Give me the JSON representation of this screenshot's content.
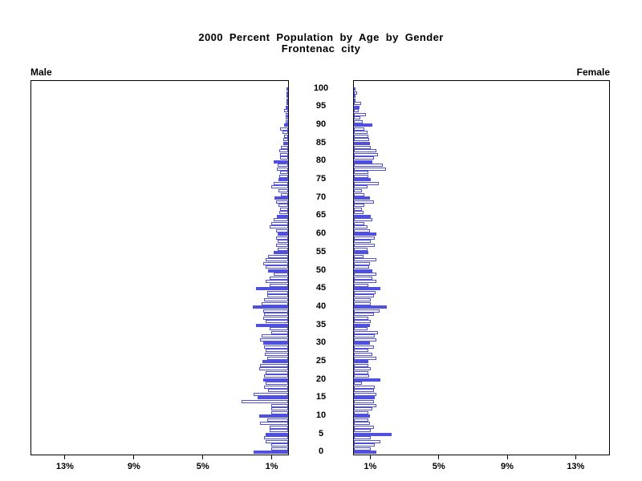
{
  "title": {
    "line1": "2000 Percent Population by Age by Gender",
    "line2": "Frontenac city"
  },
  "panel_labels": {
    "left": "Male",
    "right": "Female"
  },
  "colors": {
    "bar_accent": "#4f4fe0",
    "bar_fill": "#ffffff",
    "axis": "#000000",
    "text": "#000000"
  },
  "axis": {
    "x_max_percent": 15,
    "x_ticks": [
      {
        "pct": 1,
        "label": "1%"
      },
      {
        "pct": 5,
        "label": "5%"
      },
      {
        "pct": 9,
        "label": "9%"
      },
      {
        "pct": 13,
        "label": "13%"
      }
    ],
    "x_tick_labels_left_to_right_male": [
      "13%",
      "9%",
      "5%",
      "1%"
    ],
    "x_tick_labels_left_to_right_female": [
      "1%",
      "5%",
      "9%",
      "13%"
    ],
    "age_min": 0,
    "age_max": 100,
    "age_tick_step": 5,
    "age_tick_labels": [
      "100",
      "95",
      "90",
      "85",
      "80",
      "75",
      "70",
      "65",
      "60",
      "55",
      "50",
      "45",
      "40",
      "35",
      "30",
      "25",
      "20",
      "15",
      "10",
      "5",
      "0"
    ]
  },
  "chart_data": {
    "type": "bar",
    "subtype": "population-pyramid",
    "title": "2000 Percent Population by Age by Gender",
    "subtitle": "Frontenac city",
    "orientation": "horizontal",
    "x_unit": "percent of population",
    "xlim": [
      0,
      15
    ],
    "ages_from": 0,
    "ages_to": 100,
    "highlight_rule": "bars at ages divisible by 5 are solid blue; all other ages are white with blue outline",
    "legend_position": "none",
    "grid": false,
    "series": [
      {
        "name": "Male",
        "side": "left",
        "values": [
          2.0,
          1.0,
          1.0,
          1.3,
          1.4,
          1.32,
          1.1,
          1.1,
          1.63,
          1.24,
          1.7,
          1.0,
          1.0,
          1.0,
          2.7,
          1.77,
          2.0,
          1.16,
          1.4,
          1.3,
          1.47,
          1.4,
          1.3,
          1.7,
          1.63,
          1.5,
          1.2,
          1.35,
          1.3,
          1.4,
          1.47,
          1.63,
          1.55,
          1.0,
          1.08,
          1.86,
          1.3,
          1.45,
          1.4,
          1.47,
          2.05,
          1.55,
          1.4,
          1.2,
          1.24,
          1.86,
          1.1,
          1.32,
          1.08,
          0.85,
          1.16,
          1.3,
          1.47,
          1.32,
          1.16,
          0.85,
          0.62,
          0.7,
          0.62,
          0.7,
          0.59,
          0.7,
          1.08,
          1.0,
          0.85,
          0.65,
          0.5,
          0.47,
          0.54,
          0.7,
          0.78,
          0.4,
          0.54,
          1.0,
          0.85,
          0.54,
          0.5,
          0.47,
          0.65,
          0.59,
          0.85,
          0.47,
          0.47,
          0.53,
          0.43,
          0.28,
          0.28,
          0.22,
          0.34,
          0.47,
          0.22,
          0.16,
          0.15,
          0.12,
          0.22,
          0.14,
          0.09,
          0.07,
          0.07,
          0.05,
          0.05
        ]
      },
      {
        "name": "Female",
        "side": "right",
        "values": [
          1.32,
          1.0,
          1.24,
          1.55,
          1.0,
          2.2,
          1.0,
          1.16,
          0.93,
          0.85,
          0.93,
          0.85,
          1.1,
          1.32,
          1.16,
          1.24,
          1.32,
          1.16,
          1.24,
          0.47,
          1.55,
          0.9,
          0.85,
          1.0,
          0.85,
          0.85,
          1.32,
          1.1,
          0.85,
          1.2,
          0.93,
          1.3,
          1.24,
          1.4,
          0.8,
          0.95,
          1.0,
          0.85,
          1.16,
          1.5,
          1.94,
          1.0,
          1.0,
          1.2,
          1.25,
          1.55,
          0.85,
          1.32,
          1.08,
          1.32,
          1.08,
          0.9,
          0.93,
          1.32,
          0.55,
          0.85,
          0.8,
          1.24,
          1.0,
          1.24,
          1.32,
          0.93,
          0.78,
          0.62,
          1.08,
          1.0,
          0.55,
          0.47,
          0.62,
          1.16,
          0.96,
          0.6,
          0.47,
          0.78,
          1.47,
          1.0,
          0.85,
          0.85,
          1.9,
          1.7,
          1.08,
          1.2,
          1.4,
          1.3,
          1.0,
          0.93,
          0.9,
          0.85,
          0.78,
          0.6,
          1.08,
          0.5,
          0.4,
          0.7,
          0.28,
          0.31,
          0.43,
          0.09,
          0.05,
          0.19,
          0.05
        ]
      }
    ]
  }
}
